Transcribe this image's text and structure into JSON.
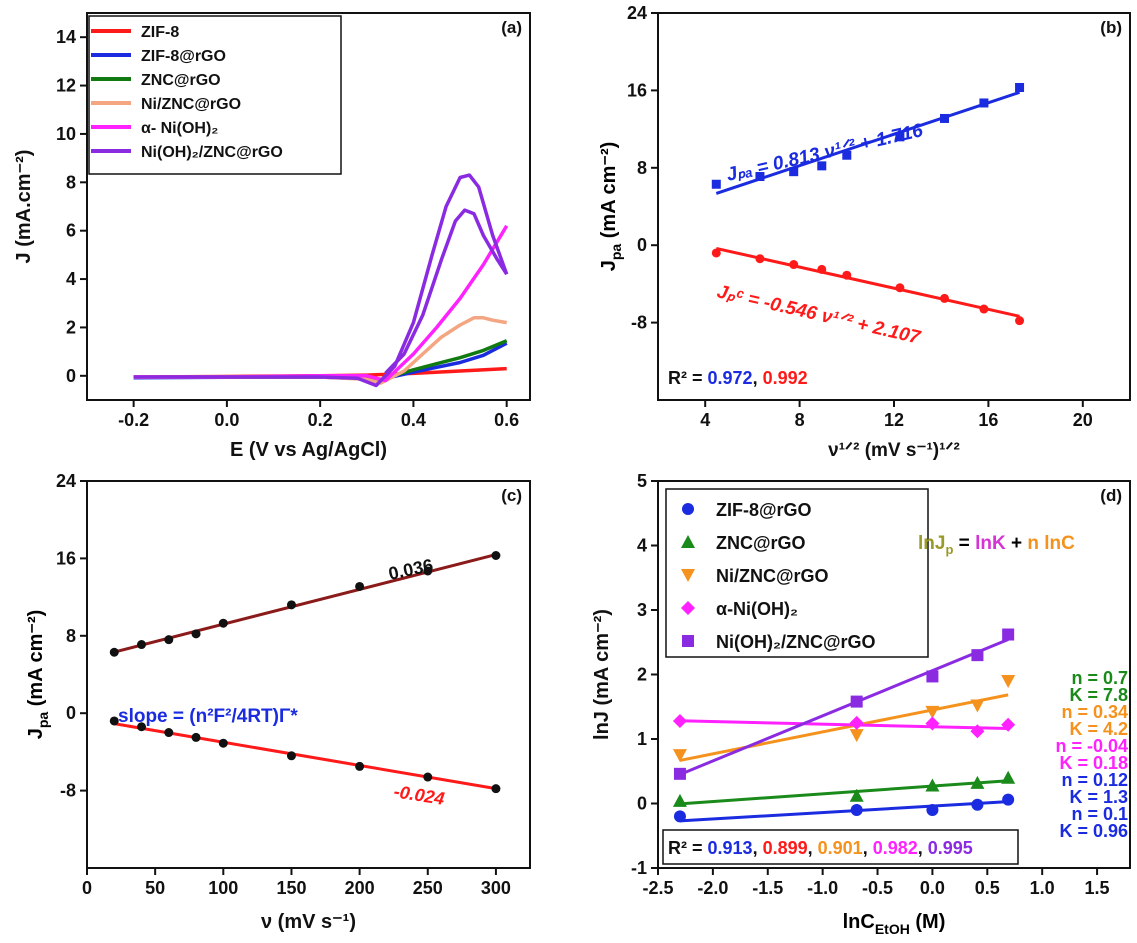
{
  "chart_data": [
    {
      "panel": "(a)",
      "type": "line",
      "xlabel": "E (V vs Ag/AgCl)",
      "ylabel": "J (mA.cm⁻²)",
      "xlim": [
        -0.3,
        0.65
      ],
      "ylim": [
        -1,
        15
      ],
      "xticks": [
        -0.2,
        0.0,
        0.2,
        0.4,
        0.6
      ],
      "xtick_labels": [
        "-0.2",
        "0.0",
        "0.2",
        "0.4",
        "0.6"
      ],
      "yticks": [
        0,
        2,
        4,
        6,
        8,
        10,
        12,
        14
      ],
      "ytick_labels": [
        "0",
        "2",
        "4",
        "6",
        "8",
        "10",
        "12",
        "14"
      ],
      "legend_position": "top-left",
      "series": [
        {
          "name": "ZIF-8",
          "color": "#ff1a1a",
          "x": [
            -0.2,
            0.0,
            0.2,
            0.3,
            0.4,
            0.5,
            0.6
          ],
          "y": [
            -0.05,
            -0.03,
            0.0,
            0.03,
            0.1,
            0.2,
            0.3
          ]
        },
        {
          "name": "ZIF-8@rGO",
          "color": "#1a2be0",
          "x": [
            -0.2,
            0.0,
            0.2,
            0.3,
            0.33,
            0.4,
            0.45,
            0.5,
            0.55,
            0.6
          ],
          "y": [
            -0.08,
            -0.06,
            -0.05,
            -0.12,
            -0.15,
            0.15,
            0.35,
            0.55,
            0.85,
            1.35
          ]
        },
        {
          "name": "ZNC@rGO",
          "color": "#117a11",
          "x": [
            -0.2,
            0.0,
            0.2,
            0.3,
            0.33,
            0.4,
            0.45,
            0.5,
            0.55,
            0.6
          ],
          "y": [
            -0.06,
            -0.05,
            -0.05,
            -0.12,
            -0.15,
            0.25,
            0.5,
            0.75,
            1.05,
            1.45
          ]
        },
        {
          "name": "Ni/ZNC@rGO",
          "color": "#f4a582",
          "x": [
            -0.2,
            0.0,
            0.2,
            0.3,
            0.33,
            0.38,
            0.42,
            0.46,
            0.5,
            0.53,
            0.55,
            0.57,
            0.6
          ],
          "y": [
            -0.06,
            -0.05,
            -0.05,
            -0.15,
            -0.3,
            0.2,
            0.9,
            1.6,
            2.1,
            2.4,
            2.4,
            2.3,
            2.2
          ]
        },
        {
          "name": "α- Ni(OH)₂",
          "color": "#ff22ff",
          "x": [
            -0.2,
            0.0,
            0.2,
            0.3,
            0.34,
            0.4,
            0.45,
            0.5,
            0.55,
            0.6
          ],
          "y": [
            -0.05,
            -0.05,
            0.0,
            0.0,
            -0.2,
            0.9,
            2.0,
            3.2,
            4.6,
            6.2
          ]
        },
        {
          "name": "Ni(OH)₂/ZNC@rGO",
          "color": "#8a2be2",
          "x": [
            -0.2,
            0.0,
            0.2,
            0.28,
            0.32,
            0.36,
            0.4,
            0.44,
            0.47,
            0.5,
            0.52,
            0.54,
            0.57,
            0.6
          ],
          "y": [
            -0.05,
            -0.05,
            -0.05,
            -0.1,
            -0.4,
            0.4,
            2.2,
            5.0,
            7.0,
            8.2,
            8.3,
            7.8,
            5.8,
            4.2
          ]
        },
        {
          "name": "",
          "color": "#8a2be2",
          "x": [
            0.34,
            0.38,
            0.42,
            0.46,
            0.49,
            0.51,
            0.53,
            0.55,
            0.58,
            0.6
          ],
          "y": [
            0.1,
            0.9,
            2.5,
            4.8,
            6.4,
            6.85,
            6.7,
            5.8,
            4.8,
            4.2
          ]
        }
      ]
    },
    {
      "panel": "(b)",
      "type": "scatter",
      "xlabel": "ν¹ᐟ² (mV s⁻¹)¹ᐟ²",
      "ylabel": "J",
      "ylabel_sub": "pa",
      "ylabel_unit": " (mA cm⁻²)",
      "xlim": [
        2,
        22
      ],
      "ylim": [
        -16,
        24
      ],
      "xticks": [
        4,
        8,
        12,
        16,
        20
      ],
      "xtick_labels": [
        "4",
        "8",
        "12",
        "16",
        "20"
      ],
      "yticks": [
        -8,
        0,
        8,
        16,
        24
      ],
      "ytick_labels": [
        "-8",
        "0",
        "8",
        "16",
        "24"
      ],
      "series": [
        {
          "color": "#1a2be0",
          "marker": "square",
          "x": [
            4.47,
            6.32,
            7.75,
            8.94,
            10.0,
            12.25,
            14.14,
            15.81,
            17.32
          ],
          "y": [
            6.3,
            7.1,
            7.6,
            8.2,
            9.3,
            11.2,
            13.1,
            14.7,
            16.3
          ],
          "fit": {
            "slope": 0.813,
            "intercept": 1.716
          }
        },
        {
          "color": "#ff1a1a",
          "marker": "circle",
          "x": [
            4.47,
            6.32,
            7.75,
            8.94,
            10.0,
            12.25,
            14.14,
            15.81,
            17.32
          ],
          "y": [
            -0.8,
            -1.4,
            -2.0,
            -2.5,
            -3.1,
            -4.4,
            -5.5,
            -6.6,
            -7.8
          ],
          "fit": {
            "slope": -0.546,
            "intercept": 2.107
          }
        }
      ],
      "annotations": {
        "eq_pa": "Jₚₐ = 0.813 ν¹ᐟ² + 1.716",
        "eq_pc": "Jₚᶜ = -0.546 ν¹ᐟ² + 2.107",
        "r2_label": "R² = ",
        "r2_blue": "0.972",
        "r2_sep": ", ",
        "r2_red": "0.992"
      }
    },
    {
      "panel": "(c)",
      "type": "scatter",
      "xlabel": "ν (mV s⁻¹)",
      "ylabel": "J",
      "ylabel_sub": "pa",
      "ylabel_unit": " (mA cm⁻²)",
      "xlim": [
        0,
        325
      ],
      "ylim": [
        -16,
        24
      ],
      "xticks": [
        0,
        50,
        100,
        150,
        200,
        250,
        300
      ],
      "xtick_labels": [
        "0",
        "50",
        "100",
        "150",
        "200",
        "250",
        "300"
      ],
      "yticks": [
        -8,
        0,
        8,
        16,
        24
      ],
      "ytick_labels": [
        "-8",
        "0",
        "8",
        "16",
        "24"
      ],
      "series": [
        {
          "color": "#111111",
          "fit_color": "#8b1a1a",
          "marker": "circle",
          "x": [
            20,
            40,
            60,
            80,
            100,
            150,
            200,
            250,
            300
          ],
          "y": [
            6.3,
            7.1,
            7.6,
            8.2,
            9.3,
            11.2,
            13.1,
            14.7,
            16.3
          ],
          "fit": {
            "slope": 0.036,
            "intercept": 5.6
          }
        },
        {
          "color": "#111111",
          "fit_color": "#ff1a1a",
          "marker": "circle",
          "x": [
            20,
            40,
            60,
            80,
            100,
            150,
            200,
            250,
            300
          ],
          "y": [
            -0.8,
            -1.4,
            -2.0,
            -2.5,
            -3.1,
            -4.4,
            -5.5,
            -6.6,
            -7.8
          ],
          "fit": {
            "slope": -0.024,
            "intercept": -0.6
          }
        }
      ],
      "annotations": {
        "slope_pa": "0.036",
        "slope_pc": "-0.024",
        "formula": "slope = (n²F²/4RT)Γ*"
      }
    },
    {
      "panel": "(d)",
      "type": "scatter",
      "xlabel": "lnC",
      "xlabel_sub": "EtOH",
      "xlabel_unit": " (M)",
      "ylabel": "lnJ (mA cm⁻²)",
      "xlim": [
        -2.5,
        1.8
      ],
      "ylim": [
        -1,
        5
      ],
      "xticks": [
        -2.5,
        -2.0,
        -1.5,
        -1.0,
        -0.5,
        0.0,
        0.5,
        1.0,
        1.5
      ],
      "xtick_labels": [
        "-2.5",
        "-2.0",
        "-1.5",
        "-1.0",
        "-0.5",
        "0.0",
        "0.5",
        "1.0",
        "1.5"
      ],
      "yticks": [
        -1,
        0,
        1,
        2,
        3,
        4,
        5
      ],
      "ytick_labels": [
        "-1",
        "0",
        "1",
        "2",
        "3",
        "4",
        "5"
      ],
      "legend_position": "top-left",
      "equation": {
        "a": "lnJ",
        "a_sub": "p",
        "eq": " = ",
        "b": "lnK",
        "plus": " + ",
        "c": "n lnC"
      },
      "series": [
        {
          "name": "ZIF-8@rGO",
          "color": "#1a2be0",
          "marker": "circle",
          "x": [
            -2.3,
            -0.69,
            0.0,
            0.41,
            0.69
          ],
          "y": [
            -0.2,
            -0.1,
            -0.1,
            -0.02,
            0.06
          ],
          "fit": {
            "slope": 0.1,
            "intercept": -0.04
          }
        },
        {
          "name": "ZNC@rGO",
          "color": "#1a8a1a",
          "marker": "triangle",
          "x": [
            -2.3,
            -0.69,
            0.0,
            0.41,
            0.69
          ],
          "y": [
            0.04,
            0.12,
            0.28,
            0.32,
            0.4
          ],
          "fit": {
            "slope": 0.12,
            "intercept": 0.27
          }
        },
        {
          "name": "Ni/ZNC@rGO",
          "color": "#f5921e",
          "marker": "triangle-down",
          "x": [
            -2.3,
            -0.69,
            0.0,
            0.41,
            0.69
          ],
          "y": [
            0.75,
            1.06,
            1.42,
            1.52,
            1.9
          ],
          "fit": {
            "slope": 0.34,
            "intercept": 1.45
          }
        },
        {
          "name": "α-Ni(OH)₂",
          "color": "#ff22ff",
          "marker": "diamond",
          "x": [
            -2.3,
            -0.69,
            0.0,
            0.41,
            0.69
          ],
          "y": [
            1.28,
            1.25,
            1.24,
            1.12,
            1.22
          ],
          "fit": {
            "slope": -0.04,
            "intercept": 1.19
          }
        },
        {
          "name": "Ni(OH)₂/ZNC@rGO",
          "color": "#8a2be2",
          "marker": "square",
          "x": [
            -2.3,
            -0.69,
            0.0,
            0.41,
            0.69
          ],
          "y": [
            0.46,
            1.58,
            1.97,
            2.3,
            2.62
          ],
          "fit": {
            "slope": 0.7,
            "intercept": 2.06
          }
        }
      ],
      "param_labels": [
        {
          "text": "n = 0.7",
          "color": "#1a8a1a"
        },
        {
          "text": "K = 7.8",
          "color": "#1a8a1a"
        },
        {
          "text": "n = 0.34",
          "color": "#f5921e"
        },
        {
          "text": "K = 4.2",
          "color": "#f5921e"
        },
        {
          "text": "n = -0.04",
          "color": "#ff22ff"
        },
        {
          "text": "K = 0.18",
          "color": "#ff22ff"
        },
        {
          "text": "n = 0.12",
          "color": "#1a2be0"
        },
        {
          "text": "K = 1.3",
          "color": "#1a2be0"
        },
        {
          "text": "n = 0.1",
          "color": "#1a2be0"
        },
        {
          "text": "K = 0.96",
          "color": "#1a2be0"
        }
      ],
      "r2": {
        "label": "R² = ",
        "values": [
          {
            "text": "0.913",
            "color": "#1a2be0"
          },
          {
            "text": "0.899",
            "color": "#ff1a1a"
          },
          {
            "text": "0.901",
            "color": "#f5921e"
          },
          {
            "text": "0.982",
            "color": "#ff22ff"
          },
          {
            "text": "0.995",
            "color": "#8a2be2"
          }
        ]
      }
    }
  ]
}
